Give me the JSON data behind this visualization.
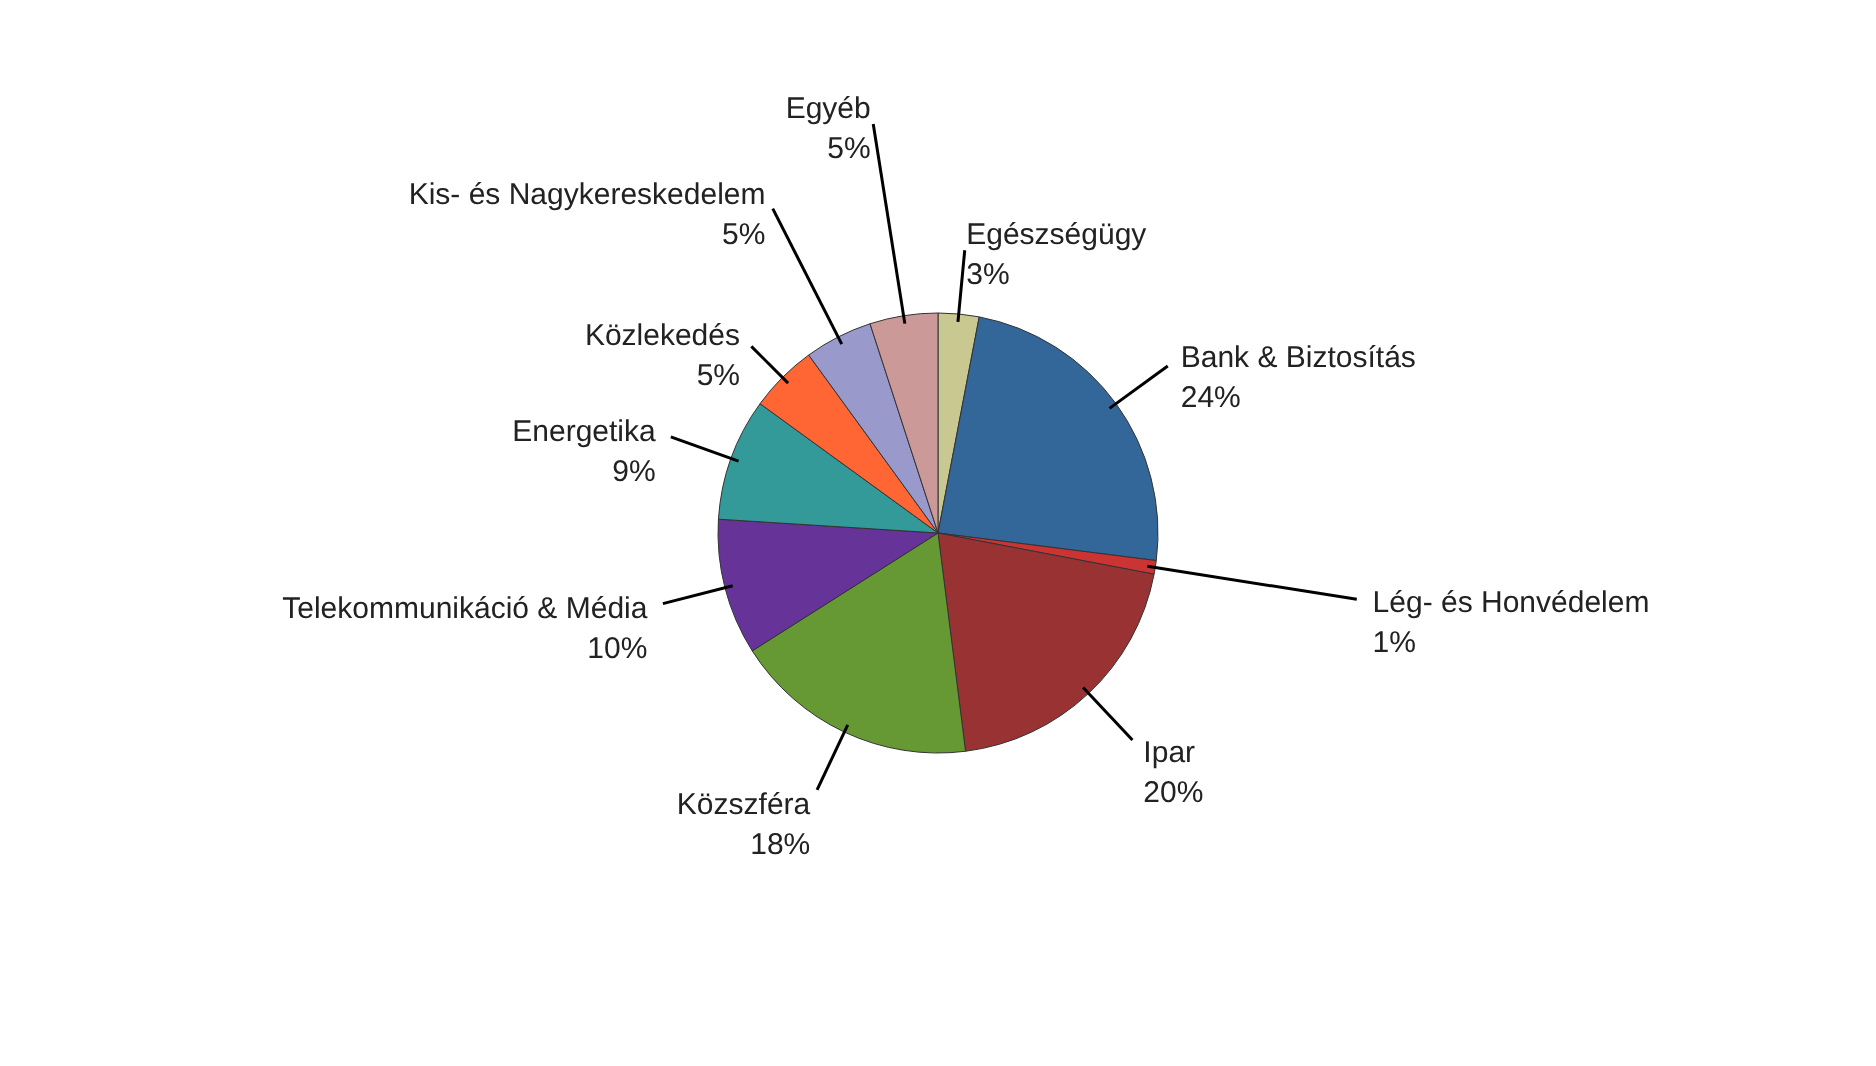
{
  "chart_data": {
    "type": "pie",
    "categories": [
      "Egészségügy",
      "Bank & Biztosítás",
      "Lég- és Honvédelem",
      "Ipar",
      "Közszféra",
      "Telekommunikáció & Média",
      "Energetika",
      "Közlekedés",
      "Kis- és Nagykereskedelem",
      "Egyéb"
    ],
    "values": [
      3,
      24,
      1,
      20,
      18,
      10,
      9,
      5,
      5,
      5
    ],
    "value_labels": [
      "3%",
      "24%",
      "1%",
      "20%",
      "18%",
      "10%",
      "9%",
      "5%",
      "5%",
      "5%"
    ],
    "colors": [
      "#c8c890",
      "#336699",
      "#cc3333",
      "#993333",
      "#669933",
      "#663399",
      "#339999",
      "#ff6633",
      "#9999cc",
      "#cc9999"
    ],
    "legend": false
  }
}
